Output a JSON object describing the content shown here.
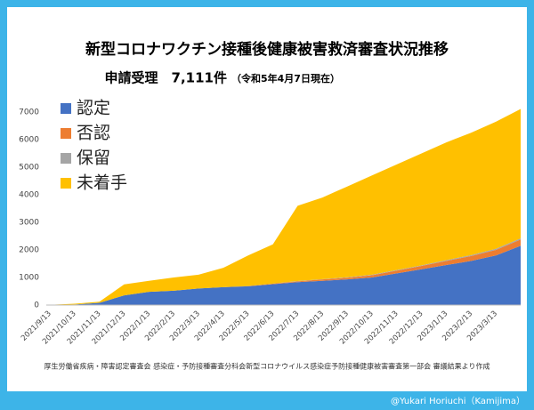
{
  "chart_data": {
    "type": "stacked_area",
    "title": "新型コロナワクチン接種後健康被害救済審査状況推移",
    "subtitle": "申請受理　7,111件",
    "subtitle_note": "（令和5年4月7日現在）",
    "source": "厚生労働省疾病・障害認定審査会 感染症・予防接種審査分科会新型コロナウイルス感染症予防接種健康被害審査第一部会 審議結果より作成",
    "credit": "@Yukari Horiuchi（Kamijima）",
    "categories": [
      "2021/9/13",
      "2021/10/13",
      "2021/11/13",
      "2021/12/13",
      "2022/1/13",
      "2022/2/13",
      "2022/3/13",
      "2022/4/13",
      "2022/5/13",
      "2022/6/13",
      "2022/7/13",
      "2022/8/13",
      "2022/9/13",
      "2022/10/13",
      "2022/11/13",
      "2022/12/13",
      "2023/1/13",
      "2023/2/13",
      "2023/3/13",
      null
    ],
    "series": [
      {
        "name": "認定",
        "color": "#4472c4",
        "values": [
          0,
          20,
          80,
          350,
          480,
          520,
          600,
          650,
          680,
          760,
          830,
          880,
          930,
          1000,
          1150,
          1300,
          1450,
          1600,
          1800,
          2150
        ]
      },
      {
        "name": "否認",
        "color": "#ed7d31",
        "values": [
          0,
          0,
          0,
          0,
          0,
          0,
          0,
          0,
          10,
          20,
          30,
          50,
          60,
          80,
          100,
          120,
          150,
          180,
          200,
          230
        ]
      },
      {
        "name": "保留",
        "color": "#a5a5a5",
        "values": [
          0,
          0,
          0,
          0,
          0,
          0,
          0,
          0,
          0,
          0,
          10,
          10,
          20,
          20,
          20,
          20,
          30,
          30,
          40,
          40
        ]
      },
      {
        "name": "未着手",
        "color": "#ffc000",
        "values": [
          10,
          30,
          40,
          400,
          400,
          480,
          500,
          700,
          1110,
          1420,
          2730,
          2960,
          3290,
          3600,
          3830,
          4060,
          4270,
          4440,
          4610,
          4691
        ]
      }
    ],
    "ylim": [
      0,
      7000
    ],
    "yticks": [
      0,
      1000,
      2000,
      3000,
      4000,
      5000,
      6000,
      7000
    ],
    "grid": false,
    "legend": "upper left"
  }
}
